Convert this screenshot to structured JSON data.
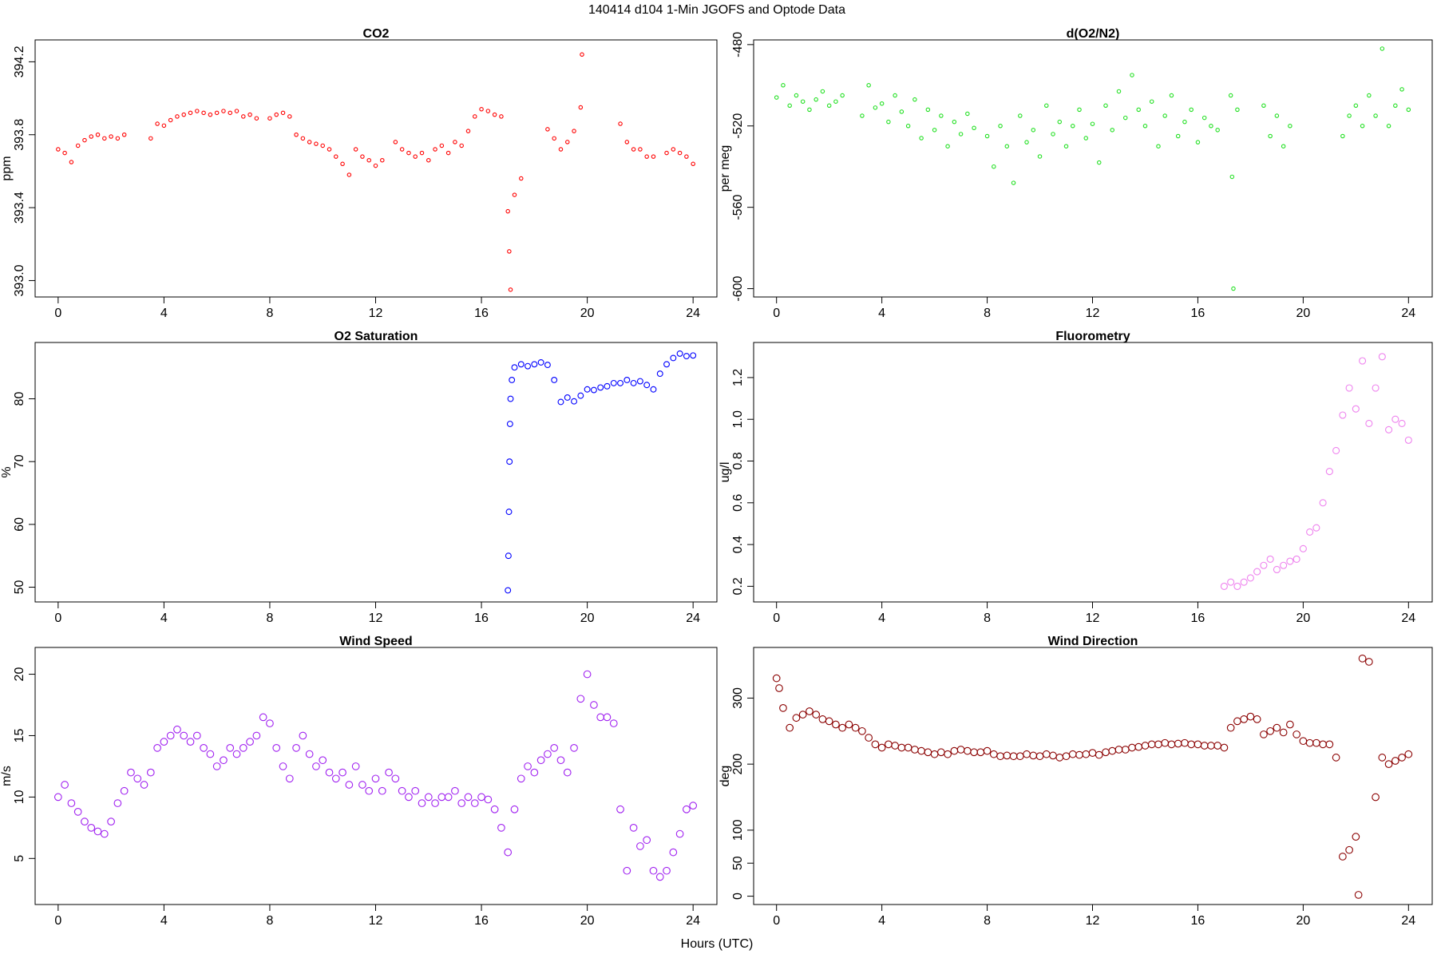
{
  "title": "140414   d104   1-Min  JGOFS and Optode Data",
  "xlabel": "Hours (UTC)",
  "chart_data": [
    {
      "type": "scatter",
      "title": "CO2",
      "ylabel": "ppm",
      "x": [
        0,
        0.25,
        0.5,
        0.75,
        1,
        1.25,
        1.5,
        1.75,
        2,
        2.25,
        2.5,
        3.5,
        3.75,
        4,
        4.25,
        4.5,
        4.75,
        5,
        5.25,
        5.5,
        5.75,
        6,
        6.25,
        6.5,
        6.75,
        7,
        7.25,
        7.5,
        8,
        8.25,
        8.5,
        8.75,
        9,
        9.25,
        9.5,
        9.75,
        10,
        10.25,
        10.5,
        10.75,
        11,
        11.25,
        11.5,
        11.75,
        12,
        12.25,
        12.75,
        13,
        13.25,
        13.5,
        13.75,
        14,
        14.25,
        14.5,
        14.75,
        15,
        15.25,
        15.5,
        15.75,
        16,
        16.25,
        16.5,
        16.75,
        17,
        17.05,
        17.1,
        17.25,
        17.5,
        18.5,
        18.75,
        19,
        19.25,
        19.5,
        19.75,
        19.8,
        21.25,
        21.5,
        21.75,
        22,
        22.25,
        22.5,
        23,
        23.25,
        23.5,
        23.75,
        24
      ],
      "series": [
        {
          "color": "#ff0000",
          "values": [
            393.72,
            393.7,
            393.65,
            393.74,
            393.77,
            393.79,
            393.8,
            393.78,
            393.79,
            393.78,
            393.8,
            393.78,
            393.86,
            393.85,
            393.88,
            393.9,
            393.91,
            393.92,
            393.93,
            393.92,
            393.91,
            393.92,
            393.93,
            393.92,
            393.93,
            393.9,
            393.91,
            393.89,
            393.89,
            393.91,
            393.92,
            393.9,
            393.8,
            393.78,
            393.76,
            393.75,
            393.74,
            393.72,
            393.68,
            393.64,
            393.58,
            393.72,
            393.68,
            393.66,
            393.63,
            393.66,
            393.76,
            393.72,
            393.7,
            393.68,
            393.7,
            393.66,
            393.72,
            393.74,
            393.7,
            393.76,
            393.74,
            393.82,
            393.9,
            393.94,
            393.93,
            393.91,
            393.9,
            393.38,
            393.16,
            392.95,
            393.47,
            393.56,
            393.83,
            393.78,
            393.72,
            393.76,
            393.82,
            393.95,
            394.24,
            393.86,
            393.76,
            393.72,
            393.72,
            393.68,
            393.68,
            393.7,
            393.72,
            393.7,
            393.68,
            393.64
          ]
        }
      ],
      "xlim": [
        -0.87,
        24.9
      ],
      "xticks": [
        0,
        4,
        8,
        12,
        16,
        20,
        24
      ],
      "ylim": [
        392.91,
        394.32
      ],
      "yticks": [
        {
          "value": 393,
          "label": "393.0"
        },
        393.4,
        393.8,
        394.2
      ]
    },
    {
      "type": "scatter",
      "title": "d(O2/N2)",
      "ylabel": "per meg",
      "x": [
        0,
        0.25,
        0.5,
        0.75,
        1,
        1.25,
        1.5,
        1.75,
        2,
        2.25,
        2.5,
        3.25,
        3.5,
        3.75,
        4,
        4.25,
        4.5,
        4.75,
        5,
        5.25,
        5.5,
        5.75,
        6,
        6.25,
        6.5,
        6.75,
        7,
        7.25,
        7.5,
        8,
        8.25,
        8.5,
        8.75,
        9,
        9.25,
        9.5,
        9.75,
        10,
        10.25,
        10.5,
        10.75,
        11,
        11.25,
        11.5,
        11.75,
        12,
        12.25,
        12.5,
        12.75,
        13,
        13.25,
        13.5,
        13.75,
        14,
        14.25,
        14.5,
        14.75,
        15,
        15.25,
        15.5,
        15.75,
        16,
        16.25,
        16.5,
        16.75,
        17.25,
        17.3,
        17.35,
        17.5,
        18.5,
        18.75,
        19,
        19.25,
        19.5,
        21.5,
        21.75,
        22,
        22.25,
        22.5,
        22.75,
        23,
        23.25,
        23.5,
        23.75,
        24
      ],
      "series": [
        {
          "color": "#22e022",
          "values": [
            -506,
            -500,
            -510,
            -505,
            -508,
            -512,
            -507,
            -503,
            -510,
            -508,
            -505,
            -515,
            -500,
            -511,
            -509,
            -518,
            -505,
            -513,
            -520,
            -507,
            -526,
            -512,
            -522,
            -515,
            -530,
            -518,
            -524,
            -514,
            -521,
            -525,
            -540,
            -520,
            -530,
            -548,
            -515,
            -528,
            -522,
            -535,
            -510,
            -524,
            -518,
            -530,
            -520,
            -512,
            -526,
            -519,
            -538,
            -510,
            -522,
            -503,
            -516,
            -495,
            -512,
            -520,
            -508,
            -530,
            -515,
            -505,
            -525,
            -518,
            -512,
            -528,
            -516,
            -520,
            -522,
            -505,
            -545,
            -600,
            -512,
            -510,
            -525,
            -515,
            -530,
            -520,
            -525,
            -515,
            -510,
            -520,
            -505,
            -515,
            -482,
            -520,
            -510,
            -502,
            -512
          ]
        }
      ],
      "xlim": [
        -0.87,
        24.9
      ],
      "xticks": [
        0,
        4,
        8,
        12,
        16,
        20,
        24
      ],
      "ylim": [
        -604.1,
        -477.7
      ],
      "yticks": [
        -600,
        -560,
        -520,
        -480
      ]
    },
    {
      "type": "scatter",
      "title": "O2 Saturation",
      "ylabel": "%",
      "x": [
        17,
        17.02,
        17.04,
        17.06,
        17.08,
        17.1,
        17.15,
        17.25,
        17.5,
        17.75,
        18,
        18.25,
        18.5,
        18.75,
        19,
        19.25,
        19.5,
        19.75,
        20,
        20.25,
        20.5,
        20.75,
        21,
        21.25,
        21.5,
        21.75,
        22,
        22.25,
        22.5,
        22.75,
        23,
        23.25,
        23.5,
        23.75,
        24
      ],
      "series": [
        {
          "color": "#0000ff",
          "values": [
            49.5,
            55,
            62,
            70,
            76,
            80,
            83,
            85,
            85.5,
            85.2,
            85.5,
            85.8,
            85.4,
            83,
            79.5,
            80.2,
            79.6,
            80.5,
            81.5,
            81.4,
            81.8,
            82,
            82.5,
            82.5,
            83,
            82.5,
            82.8,
            82.2,
            81.5,
            84,
            85.5,
            86.5,
            87.2,
            86.8,
            86.9
          ]
        }
      ],
      "xlim": [
        -0.87,
        24.9
      ],
      "xticks": [
        0,
        4,
        8,
        12,
        16,
        20,
        24
      ],
      "ylim": [
        47.65,
        88.97
      ],
      "yticks": [
        50,
        60,
        70,
        80
      ]
    },
    {
      "type": "scatter",
      "title": "Fluorometry",
      "ylabel": "ug/l",
      "x": [
        17,
        17.25,
        17.5,
        17.75,
        18,
        18.25,
        18.5,
        18.75,
        19,
        19.25,
        19.5,
        19.75,
        20,
        20.25,
        20.5,
        20.75,
        21,
        21.25,
        21.5,
        21.75,
        22,
        22.25,
        22.5,
        22.75,
        23,
        23.25,
        23.5,
        23.75,
        24
      ],
      "series": [
        {
          "color": "#ee82ee",
          "values": [
            0.2,
            0.22,
            0.2,
            0.22,
            0.24,
            0.27,
            0.3,
            0.33,
            0.28,
            0.3,
            0.32,
            0.33,
            0.38,
            0.46,
            0.48,
            0.6,
            0.75,
            0.85,
            1.02,
            1.15,
            1.05,
            1.28,
            0.98,
            1.15,
            1.3,
            0.95,
            1.0,
            0.98,
            0.9
          ]
        }
      ],
      "xlim": [
        -0.87,
        24.9
      ],
      "xticks": [
        0,
        4,
        8,
        12,
        16,
        20,
        24
      ],
      "ylim": [
        0.125,
        1.368
      ],
      "yticks": [
        0.2,
        0.4,
        0.6,
        0.8,
        {
          "value": 1,
          "label": "1.0"
        },
        1.2
      ]
    },
    {
      "type": "scatter",
      "title": "Wind Speed",
      "ylabel": "m/s",
      "x": [
        0,
        0.25,
        0.5,
        0.75,
        1,
        1.25,
        1.5,
        1.75,
        2,
        2.25,
        2.5,
        2.75,
        3,
        3.25,
        3.5,
        3.75,
        4,
        4.25,
        4.5,
        4.75,
        5,
        5.25,
        5.5,
        5.75,
        6,
        6.25,
        6.5,
        6.75,
        7,
        7.25,
        7.5,
        7.75,
        8,
        8.25,
        8.5,
        8.75,
        9,
        9.25,
        9.5,
        9.75,
        10,
        10.25,
        10.5,
        10.75,
        11,
        11.25,
        11.5,
        11.75,
        12,
        12.25,
        12.5,
        12.75,
        13,
        13.25,
        13.5,
        13.75,
        14,
        14.25,
        14.5,
        14.75,
        15,
        15.25,
        15.5,
        15.75,
        16,
        16.25,
        16.5,
        16.75,
        17,
        17.25,
        17.5,
        17.75,
        18,
        18.25,
        18.5,
        18.75,
        19,
        19.25,
        19.5,
        19.75,
        20,
        20.25,
        20.5,
        20.75,
        21,
        21.25,
        21.5,
        21.75,
        22,
        22.25,
        22.5,
        22.75,
        23,
        23.25,
        23.5,
        23.75,
        24
      ],
      "series": [
        {
          "color": "#a020f0",
          "values": [
            10,
            11,
            9.5,
            8.8,
            8,
            7.5,
            7.2,
            7,
            8,
            9.5,
            10.5,
            12,
            11.5,
            11,
            12,
            14,
            14.5,
            15,
            15.5,
            15,
            14.5,
            15,
            14,
            13.5,
            12.5,
            13,
            14,
            13.5,
            14,
            14.5,
            15,
            16.5,
            16,
            14,
            12.5,
            11.5,
            14,
            15,
            13.5,
            12.5,
            13,
            12,
            11.5,
            12,
            11,
            12.5,
            11,
            10.5,
            11.5,
            10.5,
            12,
            11.5,
            10.5,
            10,
            10.5,
            9.5,
            10,
            9.5,
            10,
            10,
            10.5,
            9.5,
            10,
            9.5,
            10,
            9.8,
            9,
            7.5,
            5.5,
            9,
            11.5,
            12.5,
            12,
            13,
            13.5,
            14,
            13,
            12,
            14,
            18,
            20,
            17.5,
            16.5,
            16.5,
            16,
            9,
            4,
            7.5,
            6,
            6.5,
            4,
            3.5,
            4,
            5.5,
            7,
            9,
            9.3
          ]
        }
      ],
      "xlim": [
        -0.87,
        24.9
      ],
      "xticks": [
        0,
        4,
        8,
        12,
        16,
        20,
        24
      ],
      "ylim": [
        1.25,
        22.18
      ],
      "yticks": [
        5,
        10,
        15,
        20
      ]
    },
    {
      "type": "scatter",
      "title": "Wind Direction",
      "ylabel": "deg",
      "x": [
        0,
        0.1,
        0.25,
        0.5,
        0.75,
        1,
        1.25,
        1.5,
        1.75,
        2,
        2.25,
        2.5,
        2.75,
        3,
        3.25,
        3.5,
        3.75,
        4,
        4.25,
        4.5,
        4.75,
        5,
        5.25,
        5.5,
        5.75,
        6,
        6.25,
        6.5,
        6.75,
        7,
        7.25,
        7.5,
        7.75,
        8,
        8.25,
        8.5,
        8.75,
        9,
        9.25,
        9.5,
        9.75,
        10,
        10.25,
        10.5,
        10.75,
        11,
        11.25,
        11.5,
        11.75,
        12,
        12.25,
        12.5,
        12.75,
        13,
        13.25,
        13.5,
        13.75,
        14,
        14.25,
        14.5,
        14.75,
        15,
        15.25,
        15.5,
        15.75,
        16,
        16.25,
        16.5,
        16.75,
        17,
        17.25,
        17.5,
        17.75,
        18,
        18.25,
        18.5,
        18.75,
        19,
        19.25,
        19.5,
        19.75,
        20,
        20.25,
        20.5,
        20.75,
        21,
        21.25,
        21.5,
        21.75,
        22,
        22.1,
        22.25,
        22.5,
        22.75,
        23,
        23.25,
        23.5,
        23.75,
        24
      ],
      "series": [
        {
          "color": "#8b0000",
          "values": [
            330,
            315,
            285,
            255,
            270,
            275,
            280,
            275,
            268,
            265,
            260,
            255,
            260,
            255,
            250,
            240,
            230,
            225,
            230,
            228,
            225,
            225,
            222,
            220,
            218,
            215,
            218,
            215,
            220,
            222,
            220,
            218,
            218,
            220,
            215,
            212,
            213,
            212,
            212,
            215,
            213,
            212,
            215,
            213,
            210,
            212,
            215,
            214,
            215,
            217,
            214,
            218,
            220,
            222,
            222,
            225,
            226,
            228,
            230,
            230,
            232,
            230,
            231,
            232,
            230,
            230,
            228,
            228,
            228,
            225,
            255,
            265,
            268,
            272,
            268,
            245,
            250,
            255,
            248,
            260,
            245,
            235,
            232,
            232,
            230,
            230,
            210,
            60,
            70,
            90,
            2,
            360,
            355,
            150,
            210,
            200,
            205,
            210,
            215
          ]
        }
      ],
      "xlim": [
        -0.87,
        24.9
      ],
      "xticks": [
        0,
        4,
        8,
        12,
        16,
        20,
        24
      ],
      "ylim": [
        -12.6,
        376.7
      ],
      "yticks": [
        0,
        50,
        100,
        200,
        300
      ]
    }
  ]
}
